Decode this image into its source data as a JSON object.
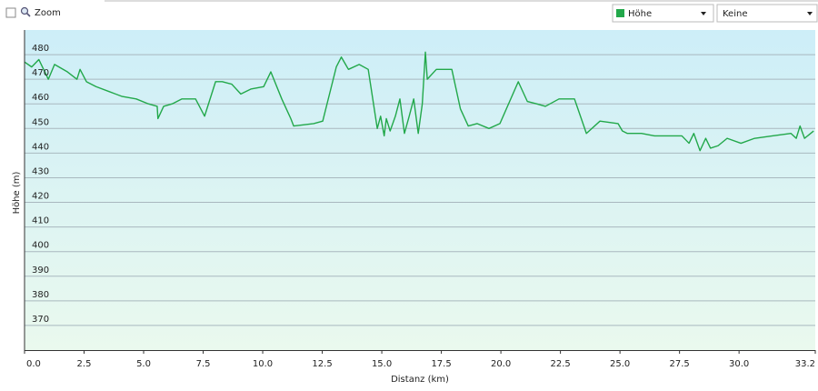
{
  "toolbar": {
    "zoom": "Zoom",
    "secondary": "Keine"
  },
  "chart_data": {
    "type": "line",
    "x_label": "Distanz  (km)",
    "y_label": "Höhe (m)",
    "x": [
      0.0,
      0.3,
      0.6,
      1.0,
      1.26,
      1.8,
      2.2,
      2.33,
      2.6,
      3.0,
      3.55,
      4.1,
      4.69,
      5.2,
      5.57,
      5.6,
      5.84,
      6.2,
      6.6,
      7.18,
      7.56,
      8.02,
      8.3,
      8.7,
      9.08,
      9.5,
      10.04,
      10.34,
      10.8,
      11.18,
      11.3,
      12.14,
      12.52,
      13.09,
      13.3,
      13.6,
      14.05,
      14.43,
      14.81,
      14.95,
      15.1,
      15.19,
      15.35,
      15.57,
      15.76,
      15.95,
      16.15,
      16.34,
      16.53,
      16.7,
      16.83,
      16.91,
      17.29,
      17.94,
      18.3,
      18.63,
      19.0,
      19.5,
      19.96,
      20.73,
      21.11,
      21.5,
      21.87,
      22.44,
      23.09,
      23.59,
      24.16,
      24.92,
      25.1,
      25.31,
      25.9,
      26.45,
      27.0,
      27.6,
      27.9,
      28.1,
      28.36,
      28.6,
      28.8,
      29.12,
      29.5,
      30.08,
      30.65,
      31.4,
      32.18,
      32.4,
      32.56,
      32.75,
      33.13
    ],
    "series": [
      {
        "name": "Höhe",
        "color": "#22a84a",
        "values": [
          477,
          475,
          478,
          470,
          476,
          473,
          470,
          474,
          469,
          467,
          465,
          463,
          462,
          460,
          459,
          454,
          459,
          460,
          462,
          462,
          455,
          469,
          469,
          468,
          464,
          466,
          467,
          473,
          462,
          454,
          451,
          452,
          453,
          475,
          479,
          474,
          476,
          474,
          450,
          455,
          447,
          454,
          449,
          455,
          462,
          448,
          455,
          462,
          448,
          460,
          481,
          470,
          474,
          474,
          458,
          451,
          452,
          450,
          452,
          469,
          461,
          460,
          459,
          462,
          462,
          448,
          453,
          452,
          449,
          448,
          448,
          447,
          447,
          447,
          444,
          448,
          441,
          446,
          442,
          443,
          446,
          444,
          446,
          447,
          448,
          446,
          451,
          446,
          449
        ]
      }
    ],
    "xlim": [
      0,
      33.2
    ],
    "ylim": [
      360,
      490
    ],
    "xticks": [
      {
        "value": 0,
        "label": "0.0"
      },
      2.5,
      {
        "value": 5,
        "label": "5.0"
      },
      7.5,
      {
        "value": 10,
        "label": "10.0"
      },
      12.5,
      {
        "value": 15,
        "label": "15.0"
      },
      17.5,
      {
        "value": 20,
        "label": "20.0"
      },
      22.5,
      {
        "value": 25,
        "label": "25.0"
      },
      27.5,
      {
        "value": 30,
        "label": "30.0"
      },
      33.2
    ],
    "yticks": [
      370,
      380,
      390,
      400,
      410,
      420,
      430,
      440,
      450,
      460,
      470,
      480
    ],
    "grid": true
  }
}
